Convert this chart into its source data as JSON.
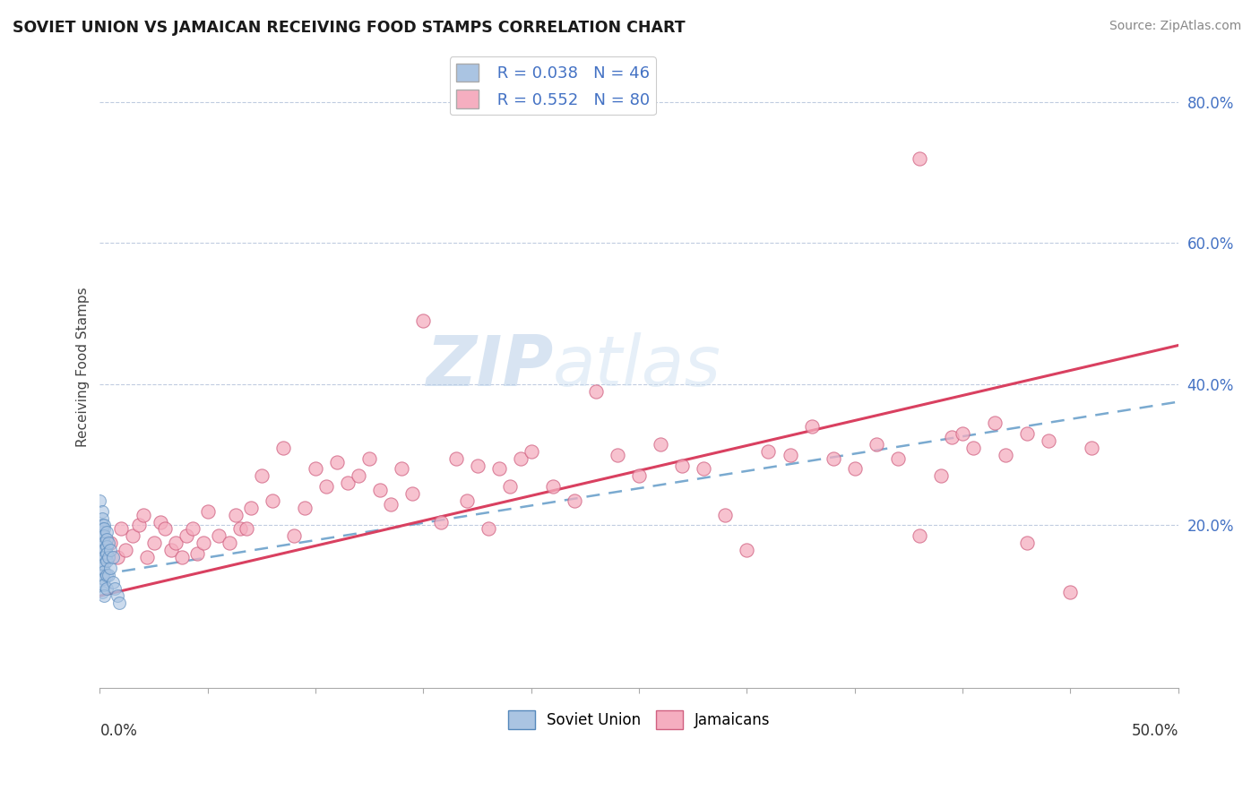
{
  "title": "SOVIET UNION VS JAMAICAN RECEIVING FOOD STAMPS CORRELATION CHART",
  "source": "Source: ZipAtlas.com",
  "ylabel": "Receiving Food Stamps",
  "y_ticks": [
    0.0,
    0.2,
    0.4,
    0.6,
    0.8
  ],
  "y_tick_labels": [
    "",
    "20.0%",
    "40.0%",
    "60.0%",
    "80.0%"
  ],
  "xmin": 0.0,
  "xmax": 0.5,
  "ymin": -0.03,
  "ymax": 0.88,
  "soviet_color": "#aac4e2",
  "jamaican_color": "#f5aec0",
  "soviet_edge": "#5588bb",
  "jamaican_edge": "#d06080",
  "trend_soviet_color": "#7aaad0",
  "trend_jamaican_color": "#d94060",
  "watermark_zip": "ZIP",
  "watermark_atlas": "atlas",
  "soviet_x": [
    0.0,
    0.001,
    0.001,
    0.001,
    0.001,
    0.001,
    0.001,
    0.001,
    0.001,
    0.001,
    0.001,
    0.001,
    0.001,
    0.001,
    0.001,
    0.001,
    0.001,
    0.001,
    0.002,
    0.002,
    0.002,
    0.002,
    0.002,
    0.002,
    0.002,
    0.002,
    0.002,
    0.002,
    0.002,
    0.003,
    0.003,
    0.003,
    0.003,
    0.003,
    0.003,
    0.003,
    0.004,
    0.004,
    0.004,
    0.005,
    0.005,
    0.006,
    0.006,
    0.007,
    0.008,
    0.009
  ],
  "soviet_y": [
    0.235,
    0.22,
    0.21,
    0.2,
    0.195,
    0.19,
    0.185,
    0.175,
    0.17,
    0.165,
    0.155,
    0.15,
    0.145,
    0.14,
    0.13,
    0.125,
    0.115,
    0.105,
    0.2,
    0.195,
    0.185,
    0.175,
    0.165,
    0.155,
    0.145,
    0.135,
    0.125,
    0.115,
    0.1,
    0.19,
    0.18,
    0.17,
    0.16,
    0.15,
    0.13,
    0.11,
    0.175,
    0.155,
    0.13,
    0.165,
    0.14,
    0.155,
    0.12,
    0.11,
    0.1,
    0.09
  ],
  "jamaican_x": [
    0.005,
    0.008,
    0.01,
    0.012,
    0.015,
    0.018,
    0.02,
    0.022,
    0.025,
    0.028,
    0.03,
    0.033,
    0.035,
    0.038,
    0.04,
    0.043,
    0.045,
    0.048,
    0.05,
    0.055,
    0.06,
    0.063,
    0.065,
    0.068,
    0.07,
    0.075,
    0.08,
    0.085,
    0.09,
    0.095,
    0.1,
    0.105,
    0.11,
    0.115,
    0.12,
    0.125,
    0.13,
    0.135,
    0.14,
    0.145,
    0.15,
    0.158,
    0.165,
    0.17,
    0.175,
    0.18,
    0.185,
    0.19,
    0.195,
    0.2,
    0.21,
    0.22,
    0.23,
    0.24,
    0.25,
    0.26,
    0.27,
    0.28,
    0.29,
    0.3,
    0.31,
    0.32,
    0.33,
    0.34,
    0.35,
    0.36,
    0.37,
    0.38,
    0.39,
    0.395,
    0.4,
    0.405,
    0.415,
    0.42,
    0.43,
    0.44,
    0.45,
    0.46,
    0.38,
    0.43
  ],
  "jamaican_y": [
    0.175,
    0.155,
    0.195,
    0.165,
    0.185,
    0.2,
    0.215,
    0.155,
    0.175,
    0.205,
    0.195,
    0.165,
    0.175,
    0.155,
    0.185,
    0.195,
    0.16,
    0.175,
    0.22,
    0.185,
    0.175,
    0.215,
    0.195,
    0.195,
    0.225,
    0.27,
    0.235,
    0.31,
    0.185,
    0.225,
    0.28,
    0.255,
    0.29,
    0.26,
    0.27,
    0.295,
    0.25,
    0.23,
    0.28,
    0.245,
    0.49,
    0.205,
    0.295,
    0.235,
    0.285,
    0.195,
    0.28,
    0.255,
    0.295,
    0.305,
    0.255,
    0.235,
    0.39,
    0.3,
    0.27,
    0.315,
    0.285,
    0.28,
    0.215,
    0.165,
    0.305,
    0.3,
    0.34,
    0.295,
    0.28,
    0.315,
    0.295,
    0.185,
    0.27,
    0.325,
    0.33,
    0.31,
    0.345,
    0.3,
    0.175,
    0.32,
    0.105,
    0.31,
    0.72,
    0.33
  ],
  "trend_sov_x0": 0.0,
  "trend_sov_y0": 0.13,
  "trend_sov_x1": 0.5,
  "trend_sov_y1": 0.375,
  "trend_jam_x0": 0.0,
  "trend_jam_y0": 0.1,
  "trend_jam_x1": 0.5,
  "trend_jam_y1": 0.455
}
